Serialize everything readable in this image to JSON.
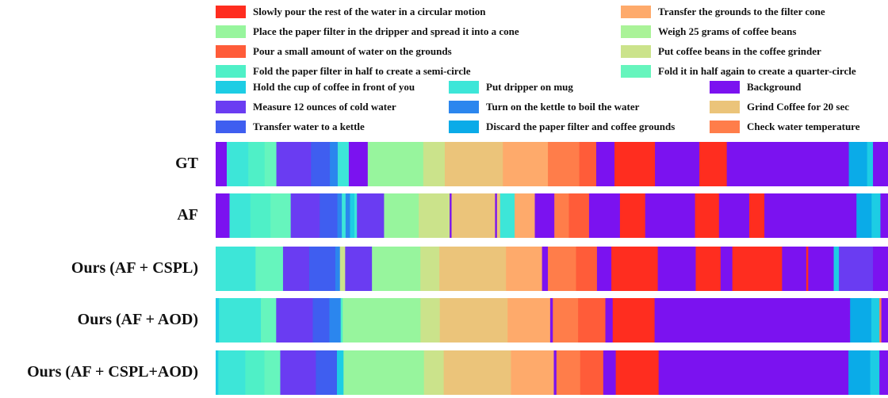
{
  "chart_data": {
    "type": "segmentation-strips",
    "classes": [
      {
        "id": "slowly_pour",
        "label": "Slowly pour the rest of the water in a circular motion",
        "color": "#ff2d1f"
      },
      {
        "id": "place_filter",
        "label": "Place the paper filter in the dripper and spread it into a cone",
        "color": "#97f59d"
      },
      {
        "id": "pour_small",
        "label": "Pour a small amount of water on the grounds",
        "color": "#ff5c39"
      },
      {
        "id": "fold_half",
        "label": "Fold the paper filter in half to create a semi-circle",
        "color": "#4ff0c7"
      },
      {
        "id": "hold_cup",
        "label": "Hold the cup of coffee in front of you",
        "color": "#1dcde4"
      },
      {
        "id": "measure_water",
        "label": "Measure 12 ounces of cold water",
        "color": "#6a3cf2"
      },
      {
        "id": "transfer_kettle",
        "label": "Transfer water to a kettle",
        "color": "#3f5ef0"
      },
      {
        "id": "transfer_grounds",
        "label": "Transfer the grounds to the filter cone",
        "color": "#feaa6b"
      },
      {
        "id": "weigh_beans",
        "label": "Weigh 25 grams of coffee beans",
        "color": "#aaf398"
      },
      {
        "id": "put_grinder",
        "label": "Put coffee beans in the coffee grinder",
        "color": "#cbe38b"
      },
      {
        "id": "fold_quarter",
        "label": "Fold it in half again to create a quarter-circle",
        "color": "#66f5bd"
      },
      {
        "id": "put_dripper",
        "label": "Put dripper on mug",
        "color": "#3de6d8"
      },
      {
        "id": "turn_kettle",
        "label": "Turn on the kettle to boil the water",
        "color": "#2b86ee"
      },
      {
        "id": "discard_filter",
        "label": "Discard the paper filter and coffee grounds",
        "color": "#0aabe8"
      },
      {
        "id": "background",
        "label": "Background",
        "color": "#7b12f0"
      },
      {
        "id": "grind_coffee",
        "label": "Grind Coffee for 20 sec",
        "color": "#ebc47a"
      },
      {
        "id": "check_temp",
        "label": "Check water temperature",
        "color": "#ff7d4a"
      }
    ],
    "rows": [
      {
        "label": "GT",
        "segments": [
          [
            "background",
            0.017
          ],
          [
            "put_dripper",
            0.033
          ],
          [
            "fold_half",
            0.025
          ],
          [
            "fold_quarter",
            0.018
          ],
          [
            "measure_water",
            0.053
          ],
          [
            "transfer_kettle",
            0.029
          ],
          [
            "turn_kettle",
            0.012
          ],
          [
            "put_dripper",
            0.017
          ],
          [
            "background",
            0.029
          ],
          [
            "place_filter",
            0.085
          ],
          [
            "put_grinder",
            0.033
          ],
          [
            "grind_coffee",
            0.089
          ],
          [
            "transfer_grounds",
            0.069
          ],
          [
            "check_temp",
            0.048
          ],
          [
            "pour_small",
            0.026
          ],
          [
            "background",
            0.028
          ],
          [
            "slowly_pour",
            0.062
          ],
          [
            "background",
            0.068
          ],
          [
            "slowly_pour",
            0.042
          ],
          [
            "background",
            0.187
          ],
          [
            "discard_filter",
            0.028
          ],
          [
            "hold_cup",
            0.009
          ],
          [
            "background",
            0.023
          ]
        ]
      },
      {
        "label": "AF",
        "segments": [
          [
            "background",
            0.022
          ],
          [
            "put_dripper",
            0.033
          ],
          [
            "fold_half",
            0.032
          ],
          [
            "fold_quarter",
            0.032
          ],
          [
            "measure_water",
            0.046
          ],
          [
            "transfer_kettle",
            0.028
          ],
          [
            "turn_kettle",
            0.007
          ],
          [
            "put_dripper",
            0.006
          ],
          [
            "turn_kettle",
            0.007
          ],
          [
            "hold_cup",
            0.007
          ],
          [
            "put_dripper",
            0.004
          ],
          [
            "measure_water",
            0.043
          ],
          [
            "place_filter",
            0.055
          ],
          [
            "put_grinder",
            0.049
          ],
          [
            "background",
            0.003
          ],
          [
            "grind_coffee",
            0.069
          ],
          [
            "background",
            0.003
          ],
          [
            "grind_coffee",
            0.005
          ],
          [
            "put_dripper",
            0.023
          ],
          [
            "transfer_grounds",
            0.032
          ],
          [
            "background",
            0.031
          ],
          [
            "check_temp",
            0.023
          ],
          [
            "pour_small",
            0.032
          ],
          [
            "background",
            0.049
          ],
          [
            "slowly_pour",
            0.04
          ],
          [
            "background",
            0.079
          ],
          [
            "slowly_pour",
            0.038
          ],
          [
            "background",
            0.048
          ],
          [
            "slowly_pour",
            0.024
          ],
          [
            "background",
            0.146
          ],
          [
            "discard_filter",
            0.024
          ],
          [
            "hold_cup",
            0.014
          ],
          [
            "background",
            0.012
          ]
        ]
      },
      {
        "label": "Ours (AF + CSPL)",
        "segments": [
          [
            "put_dripper",
            0.061
          ],
          [
            "fold_quarter",
            0.042
          ],
          [
            "measure_water",
            0.04
          ],
          [
            "transfer_kettle",
            0.04
          ],
          [
            "turn_kettle",
            0.007
          ],
          [
            "put_grinder",
            0.008
          ],
          [
            "measure_water",
            0.041
          ],
          [
            "place_filter",
            0.074
          ],
          [
            "put_grinder",
            0.029
          ],
          [
            "grind_coffee",
            0.102
          ],
          [
            "transfer_grounds",
            0.055
          ],
          [
            "background",
            0.009
          ],
          [
            "check_temp",
            0.043
          ],
          [
            "pour_small",
            0.032
          ],
          [
            "background",
            0.022
          ],
          [
            "slowly_pour",
            0.071
          ],
          [
            "background",
            0.058
          ],
          [
            "slowly_pour",
            0.038
          ],
          [
            "background",
            0.018
          ],
          [
            "slowly_pour",
            0.076
          ],
          [
            "background",
            0.037
          ],
          [
            "slowly_pour",
            0.003
          ],
          [
            "background",
            0.039
          ],
          [
            "hold_cup",
            0.008
          ],
          [
            "measure_water",
            0.052
          ],
          [
            "background",
            0.023
          ]
        ]
      },
      {
        "label": "Ours (AF + AOD)",
        "segments": [
          [
            "hold_cup",
            0.005
          ],
          [
            "put_dripper",
            0.063
          ],
          [
            "fold_quarter",
            0.023
          ],
          [
            "measure_water",
            0.055
          ],
          [
            "transfer_kettle",
            0.025
          ],
          [
            "turn_kettle",
            0.017
          ],
          [
            "fold_half",
            0.003
          ],
          [
            "place_filter",
            0.117
          ],
          [
            "put_grinder",
            0.029
          ],
          [
            "grind_coffee",
            0.102
          ],
          [
            "transfer_grounds",
            0.064
          ],
          [
            "background",
            0.004
          ],
          [
            "check_temp",
            0.038
          ],
          [
            "pour_small",
            0.041
          ],
          [
            "background",
            0.011
          ],
          [
            "slowly_pour",
            0.063
          ],
          [
            "background",
            0.294
          ],
          [
            "discard_filter",
            0.032
          ],
          [
            "hold_cup",
            0.012
          ],
          [
            "check_temp",
            0.003
          ],
          [
            "background",
            0.01
          ]
        ]
      },
      {
        "label": "Ours (AF + CSPL+AOD)",
        "segments": [
          [
            "hold_cup",
            0.004
          ],
          [
            "put_dripper",
            0.041
          ],
          [
            "fold_half",
            0.029
          ],
          [
            "fold_quarter",
            0.024
          ],
          [
            "measure_water",
            0.054
          ],
          [
            "transfer_kettle",
            0.032
          ],
          [
            "hold_cup",
            0.01
          ],
          [
            "place_filter",
            0.122
          ],
          [
            "put_grinder",
            0.03
          ],
          [
            "grind_coffee",
            0.102
          ],
          [
            "transfer_grounds",
            0.065
          ],
          [
            "background",
            0.004
          ],
          [
            "check_temp",
            0.036
          ],
          [
            "pour_small",
            0.035
          ],
          [
            "background",
            0.019
          ],
          [
            "slowly_pour",
            0.065
          ],
          [
            "background",
            0.288
          ],
          [
            "discard_filter",
            0.033
          ],
          [
            "hold_cup",
            0.014
          ],
          [
            "background",
            0.013
          ]
        ]
      }
    ]
  }
}
